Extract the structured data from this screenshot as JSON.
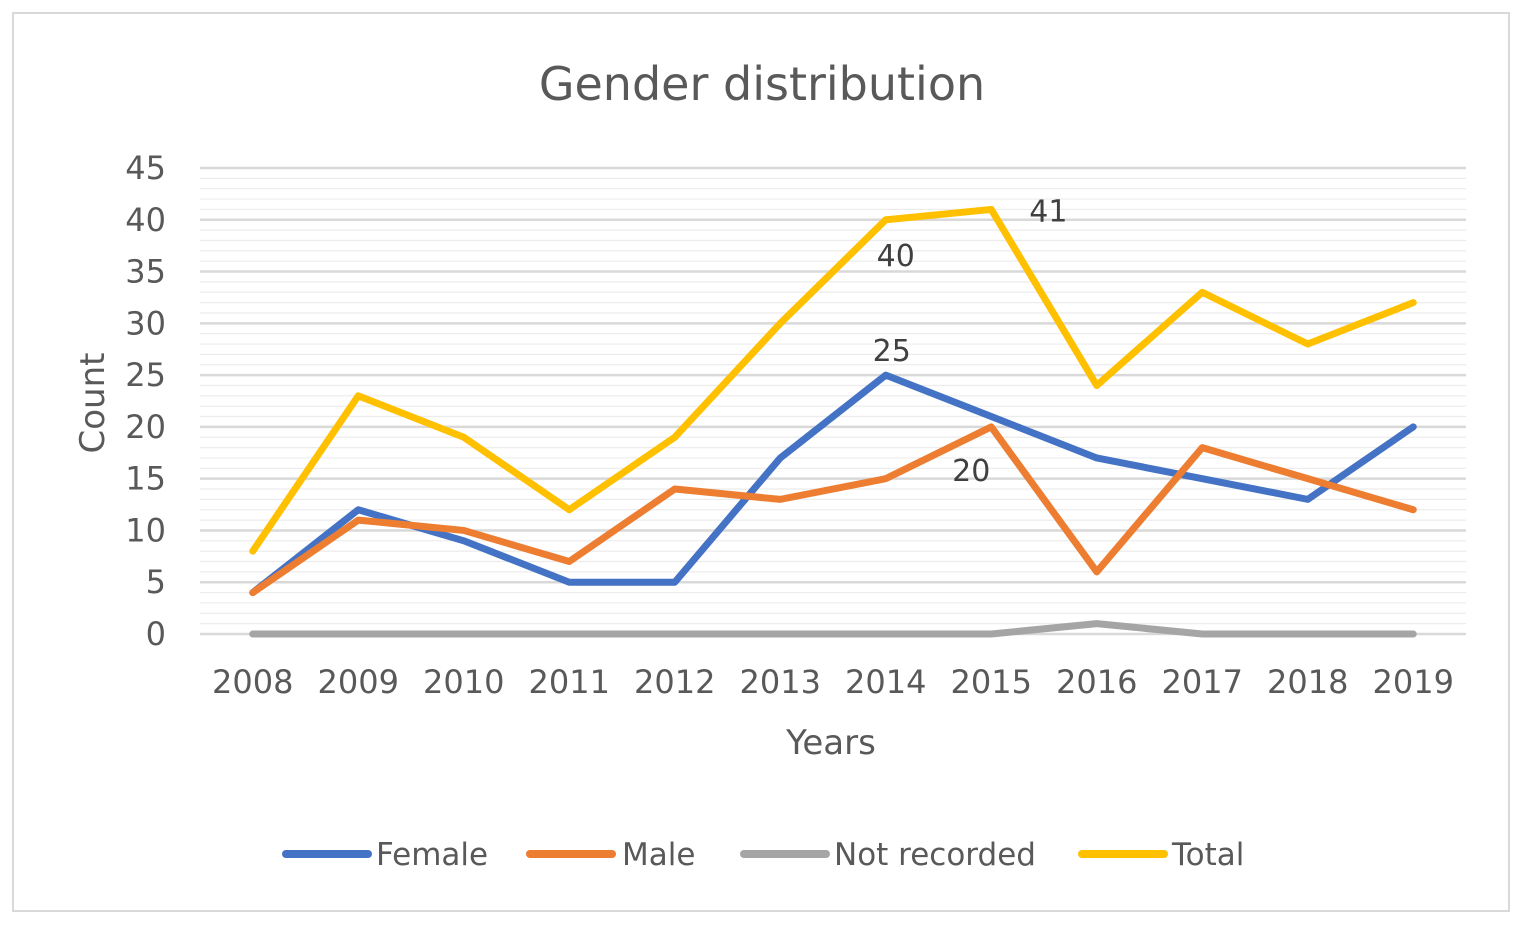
{
  "chart_data": {
    "type": "line",
    "title": "Gender distribution",
    "xlabel": "Years",
    "ylabel": "Count",
    "ylim": [
      0,
      45
    ],
    "yticks": [
      0,
      5,
      10,
      15,
      20,
      25,
      30,
      35,
      40,
      45
    ],
    "categories": [
      "2008",
      "2009",
      "2010",
      "2011",
      "2012",
      "2013",
      "2014",
      "2015",
      "2016",
      "2017",
      "2018",
      "2019"
    ],
    "series": [
      {
        "name": "Female",
        "color": "#4472c4",
        "values": [
          4,
          12,
          9,
          5,
          5,
          17,
          25,
          21,
          17,
          15,
          13,
          20
        ]
      },
      {
        "name": "Male",
        "color": "#ed7d31",
        "values": [
          4,
          11,
          10,
          7,
          14,
          13,
          15,
          20,
          6,
          18,
          15,
          12
        ]
      },
      {
        "name": "Not recorded",
        "color": "#a5a5a5",
        "values": [
          0,
          0,
          0,
          0,
          0,
          0,
          0,
          0,
          1,
          0,
          0,
          0
        ]
      },
      {
        "name": "Total",
        "color": "#ffc000",
        "values": [
          8,
          23,
          19,
          12,
          19,
          30,
          40,
          41,
          24,
          33,
          28,
          32
        ]
      }
    ],
    "data_labels": [
      {
        "series": "Total",
        "category": "2014",
        "text": "40",
        "position": "below"
      },
      {
        "series": "Total",
        "category": "2015",
        "text": "41",
        "position": "right"
      },
      {
        "series": "Female",
        "category": "2014",
        "text": "25",
        "position": "above"
      },
      {
        "series": "Male",
        "category": "2015",
        "text": "20",
        "position": "below-left"
      }
    ],
    "legend_position": "bottom",
    "grid": true
  }
}
